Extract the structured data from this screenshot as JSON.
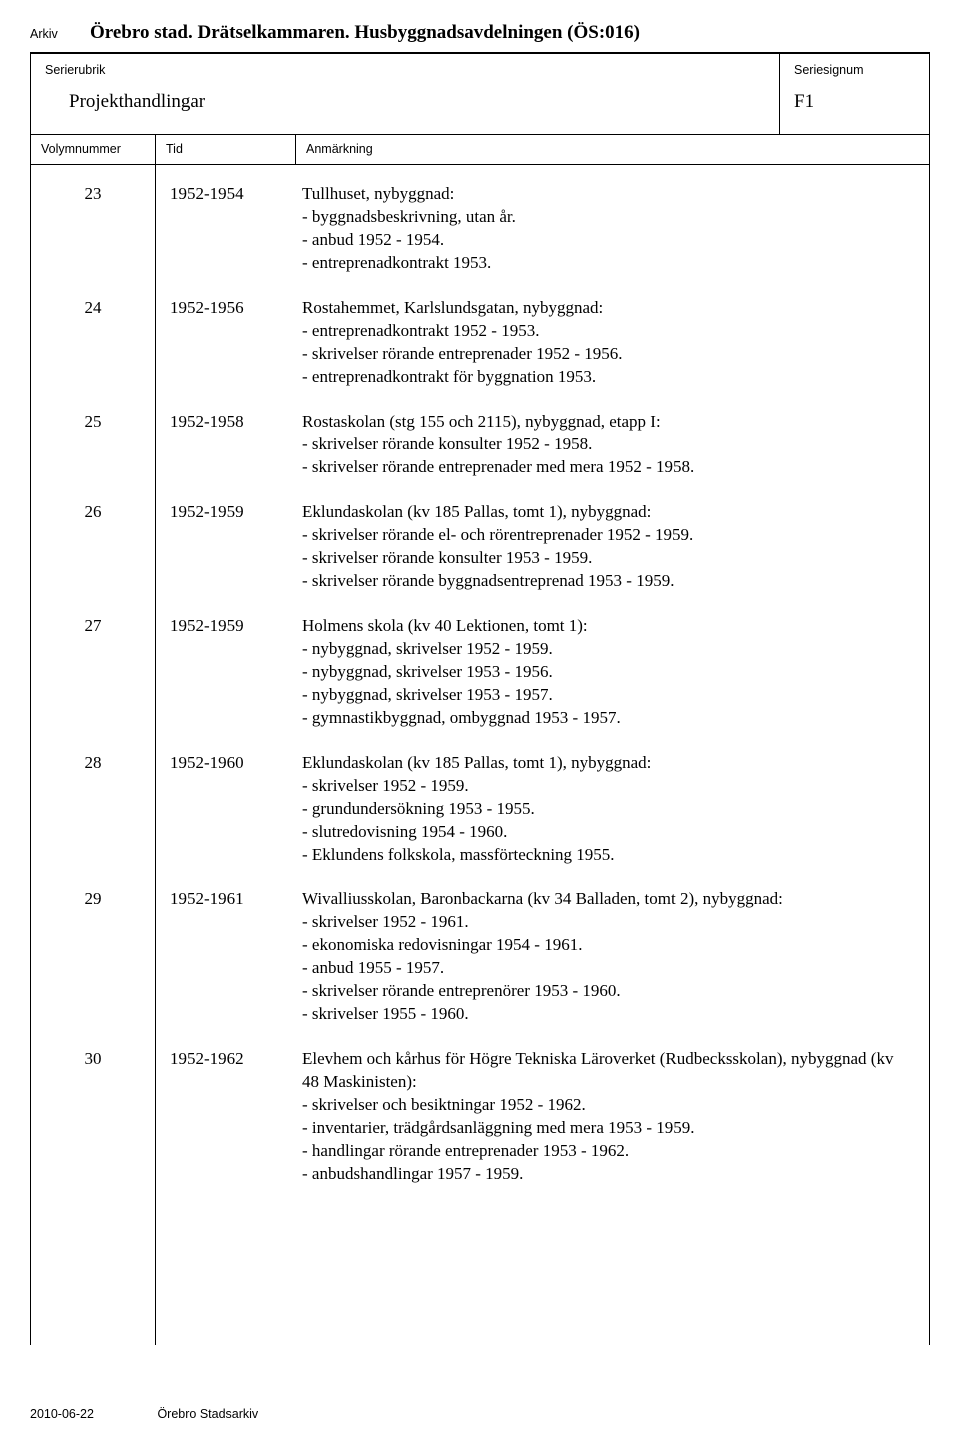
{
  "labels": {
    "arkiv": "Arkiv",
    "serierubrik": "Serierubrik",
    "seriesignum": "Seriesignum",
    "volymnummer": "Volymnummer",
    "tid": "Tid",
    "anmarkning": "Anmärkning"
  },
  "header": {
    "title": "Örebro stad. Drätselkammaren. Husbyggnadsavdelningen (ÖS:016)",
    "serierubrik": "Projekthandlingar",
    "seriesignum": "F1"
  },
  "entries": [
    {
      "vol": "23",
      "tid": "1952-1954",
      "lines": [
        "Tullhuset, nybyggnad:",
        "- byggnadsbeskrivning, utan år.",
        "- anbud 1952 - 1954.",
        "- entreprenadkontrakt 1953."
      ]
    },
    {
      "vol": "24",
      "tid": "1952-1956",
      "lines": [
        "Rostahemmet, Karlslundsgatan, nybyggnad:",
        "- entreprenadkontrakt 1952 - 1953.",
        "- skrivelser rörande entreprenader 1952 - 1956.",
        "- entreprenadkontrakt för byggnation 1953."
      ]
    },
    {
      "vol": "25",
      "tid": "1952-1958",
      "lines": [
        "Rostaskolan (stg 155 och 2115), nybyggnad, etapp I:",
        "- skrivelser rörande konsulter 1952 - 1958.",
        "- skrivelser rörande entreprenader med mera 1952 - 1958."
      ]
    },
    {
      "vol": "26",
      "tid": "1952-1959",
      "lines": [
        "Eklundaskolan (kv 185 Pallas, tomt 1), nybyggnad:",
        "- skrivelser rörande el- och rörentreprenader 1952 - 1959.",
        "- skrivelser rörande konsulter 1953 - 1959.",
        "- skrivelser rörande byggnadsentreprenad 1953 - 1959."
      ]
    },
    {
      "vol": "27",
      "tid": "1952-1959",
      "lines": [
        "Holmens skola (kv 40 Lektionen, tomt 1):",
        "- nybyggnad, skrivelser 1952 - 1959.",
        "- nybyggnad, skrivelser 1953 - 1956.",
        "- nybyggnad, skrivelser 1953 - 1957.",
        "- gymnastikbyggnad, ombyggnad 1953 - 1957."
      ]
    },
    {
      "vol": "28",
      "tid": "1952-1960",
      "lines": [
        "Eklundaskolan (kv 185 Pallas, tomt 1), nybyggnad:",
        "- skrivelser 1952 - 1959.",
        "- grundundersökning 1953 - 1955.",
        "- slutredovisning 1954 - 1960.",
        "- Eklundens folkskola, massförteckning 1955."
      ]
    },
    {
      "vol": "29",
      "tid": "1952-1961",
      "lines": [
        "Wivalliusskolan, Baronbackarna (kv 34 Balladen, tomt 2), nybyggnad:",
        "- skrivelser 1952 - 1961.",
        "- ekonomiska redovisningar 1954 - 1961.",
        "- anbud 1955 - 1957.",
        "- skrivelser rörande entreprenörer 1953 - 1960.",
        "- skrivelser 1955 - 1960."
      ]
    },
    {
      "vol": "30",
      "tid": "1952-1962",
      "lines": [
        "Elevhem och kårhus för Högre Tekniska Läroverket (Rudbecksskolan), nybyggnad (kv 48 Maskinisten):",
        "- skrivelser och besiktningar 1952 - 1962.",
        "- inventarier, trädgårdsanläggning med mera 1953 - 1959.",
        "- handlingar rörande entreprenader 1953 - 1962.",
        "- anbudshandlingar 1957 - 1959."
      ]
    }
  ],
  "footer": {
    "date": "2010-06-22",
    "source": "Örebro Stadsarkiv"
  }
}
